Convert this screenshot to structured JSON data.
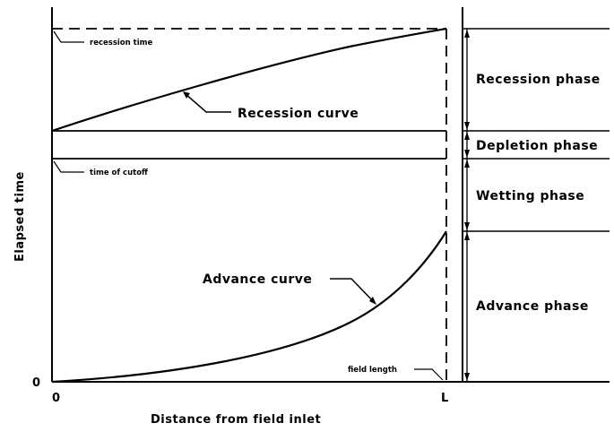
{
  "diagram": {
    "y_axis_label": "Elapsed time",
    "x_axis_label": "Distance from field inlet",
    "origin_y_label": "0",
    "origin_x_label": "0",
    "end_x_label": "L",
    "curves": {
      "recession": "Recession curve",
      "advance": "Advance curve"
    },
    "annotations": {
      "recession_time": "recession time",
      "time_of_cutoff": "time of cutoff",
      "field_length": "field length"
    },
    "phases": [
      {
        "label": "Recession phase"
      },
      {
        "label": "Depletion phase"
      },
      {
        "label": "Wetting phase"
      },
      {
        "label": "Advance phase"
      }
    ]
  }
}
